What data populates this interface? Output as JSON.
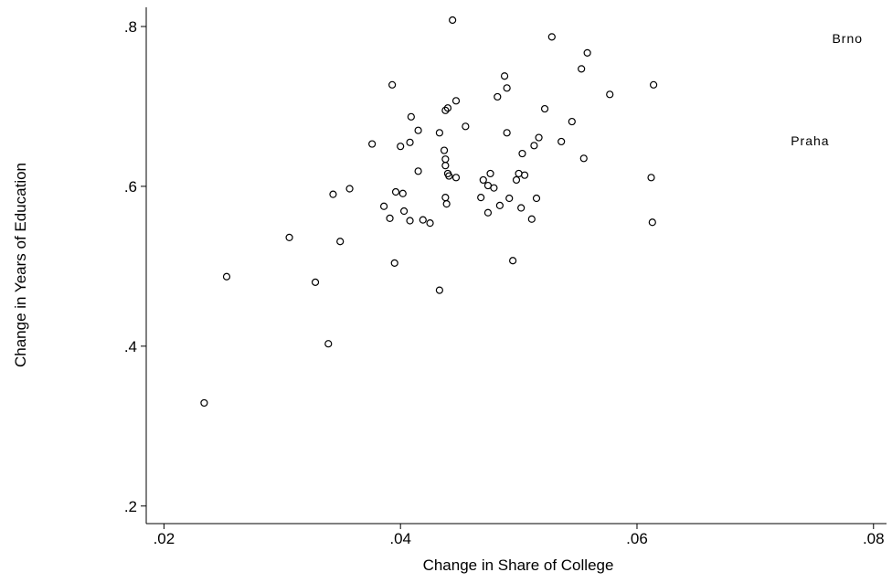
{
  "chart_data": {
    "type": "scatter",
    "x_label": "Change in Share of College",
    "y_label": "Change in Years of Education",
    "xlim": [
      0.0185,
      0.0811
    ],
    "ylim": [
      0.178,
      0.824
    ],
    "xticks": [
      {
        "value": 0.02,
        "label": ".02"
      },
      {
        "value": 0.04,
        "label": ".04"
      },
      {
        "value": 0.06,
        "label": ".06"
      },
      {
        "value": 0.08,
        "label": ".08"
      }
    ],
    "yticks": [
      {
        "value": 0.2,
        "label": ".2"
      },
      {
        "value": 0.4,
        "label": ".4"
      },
      {
        "value": 0.6,
        "label": ".6"
      },
      {
        "value": 0.8,
        "label": ".8"
      }
    ],
    "color": "#000000",
    "x": [
      0.0444,
      0.0528,
      0.0558,
      0.0553,
      0.0577,
      0.0614,
      0.0393,
      0.0488,
      0.049,
      0.0447,
      0.0482,
      0.044,
      0.0438,
      0.0522,
      0.0409,
      0.0545,
      0.0455,
      0.0415,
      0.0433,
      0.049,
      0.0517,
      0.0536,
      0.0376,
      0.0408,
      0.04,
      0.0513,
      0.0437,
      0.0503,
      0.0438,
      0.0555,
      0.0438,
      0.0415,
      0.044,
      0.0441,
      0.0447,
      0.0476,
      0.05,
      0.0505,
      0.047,
      0.0498,
      0.0612,
      0.0474,
      0.0479,
      0.0357,
      0.0343,
      0.0396,
      0.0402,
      0.0438,
      0.0468,
      0.0492,
      0.0515,
      0.0439,
      0.0484,
      0.0386,
      0.0403,
      0.0502,
      0.0474,
      0.0391,
      0.0419,
      0.0408,
      0.0425,
      0.0511,
      0.0613,
      0.0306,
      0.0349,
      0.0495,
      0.0395,
      0.0253,
      0.0328,
      0.0433,
      0.0339,
      0.0234
    ],
    "values": [
      0.808,
      0.787,
      0.767,
      0.747,
      0.715,
      0.727,
      0.727,
      0.738,
      0.723,
      0.707,
      0.712,
      0.698,
      0.695,
      0.697,
      0.687,
      0.681,
      0.675,
      0.67,
      0.667,
      0.667,
      0.661,
      0.656,
      0.653,
      0.655,
      0.65,
      0.651,
      0.645,
      0.641,
      0.634,
      0.635,
      0.626,
      0.619,
      0.616,
      0.613,
      0.611,
      0.616,
      0.616,
      0.614,
      0.608,
      0.608,
      0.611,
      0.601,
      0.598,
      0.597,
      0.59,
      0.593,
      0.591,
      0.586,
      0.586,
      0.585,
      0.585,
      0.578,
      0.576,
      0.575,
      0.569,
      0.573,
      0.567,
      0.56,
      0.558,
      0.557,
      0.554,
      0.559,
      0.555,
      0.536,
      0.531,
      0.507,
      0.504,
      0.487,
      0.48,
      0.47,
      0.403,
      0.329
    ],
    "labeled_points": [
      {
        "label": "Brno",
        "x": 0.0765,
        "y": 0.785
      },
      {
        "label": "Praha",
        "x": 0.073,
        "y": 0.657
      }
    ]
  }
}
